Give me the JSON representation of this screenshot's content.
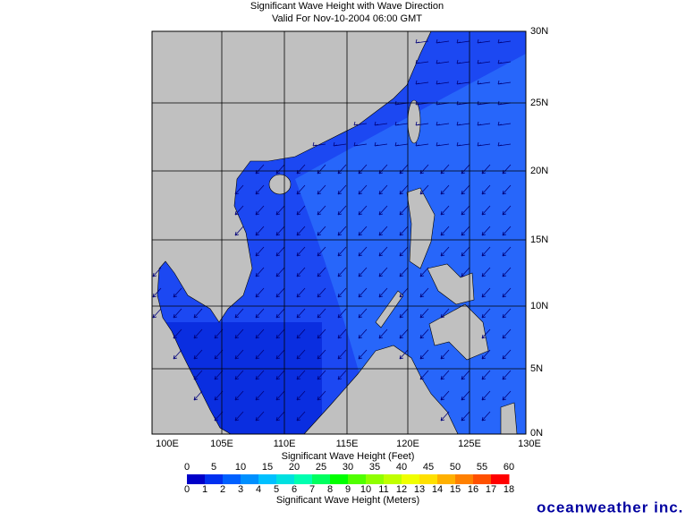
{
  "title": {
    "line1": "Significant Wave Height with Wave Direction",
    "line2": "Valid For Nov-10-2004 06:00 GMT"
  },
  "map": {
    "lat_labels": [
      "30N",
      "25N",
      "20N",
      "15N",
      "10N",
      "5N",
      "0N"
    ],
    "lon_labels": [
      "100E",
      "105E",
      "110E",
      "115E",
      "120E",
      "125E",
      "130E"
    ]
  },
  "legend": {
    "feet_title": "Significant Wave Height (Feet)",
    "feet_ticks": [
      0,
      5,
      10,
      15,
      20,
      25,
      30,
      35,
      40,
      45,
      50,
      55,
      60
    ],
    "meter_ticks": [
      0,
      1,
      2,
      3,
      4,
      5,
      6,
      7,
      8,
      9,
      10,
      11,
      12,
      13,
      14,
      15,
      16,
      17,
      18
    ],
    "meters_title": "Significant Wave Height (Meters)",
    "colors": [
      "#0000c8",
      "#0030f0",
      "#0060ff",
      "#0090ff",
      "#00c0ff",
      "#00e0e0",
      "#00ffb0",
      "#00ff60",
      "#00ff00",
      "#50ff00",
      "#90ff00",
      "#c0ff00",
      "#f0ff00",
      "#ffe000",
      "#ffb000",
      "#ff8000",
      "#ff5000",
      "#ff0000"
    ]
  },
  "brand": "oceanweather inc."
}
